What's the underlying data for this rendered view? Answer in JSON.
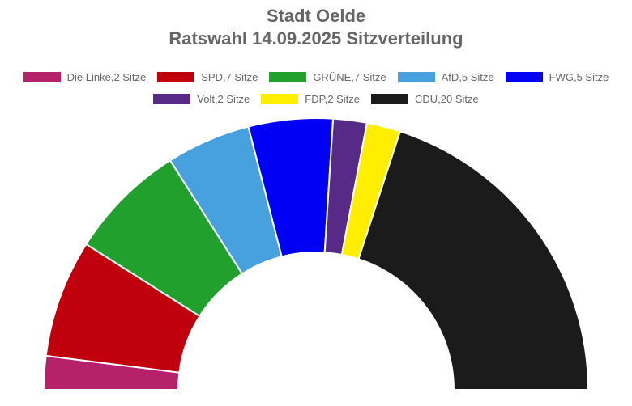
{
  "chart_data": {
    "type": "pie",
    "variant": "half-doughnut",
    "title": "Stadt Oelde",
    "subtitle": "Ratswahl 14.09.2025 Sitzverteilung",
    "legend_position": "top",
    "series": [
      {
        "name": "Die Linke,2 Sitze",
        "party": "Die Linke",
        "value": 2,
        "color": "#b5226b"
      },
      {
        "name": "SPD,7 Sitze",
        "party": "SPD",
        "value": 7,
        "color": "#c0000c"
      },
      {
        "name": "GRÜNE,7 Sitze",
        "party": "GRÜNE",
        "value": 7,
        "color": "#22a02e"
      },
      {
        "name": "AfD,5 Sitze",
        "party": "AfD",
        "value": 5,
        "color": "#48a1df"
      },
      {
        "name": "FWG,5 Sitze",
        "party": "FWG",
        "value": 5,
        "color": "#0000f5"
      },
      {
        "name": "Volt,2 Sitze",
        "party": "Volt",
        "value": 2,
        "color": "#572a88"
      },
      {
        "name": "FDP,2 Sitze",
        "party": "FDP",
        "value": 2,
        "color": "#ffee00"
      },
      {
        "name": "CDU,20 Sitze",
        "party": "CDU",
        "value": 20,
        "color": "#1b1b1b"
      }
    ]
  }
}
